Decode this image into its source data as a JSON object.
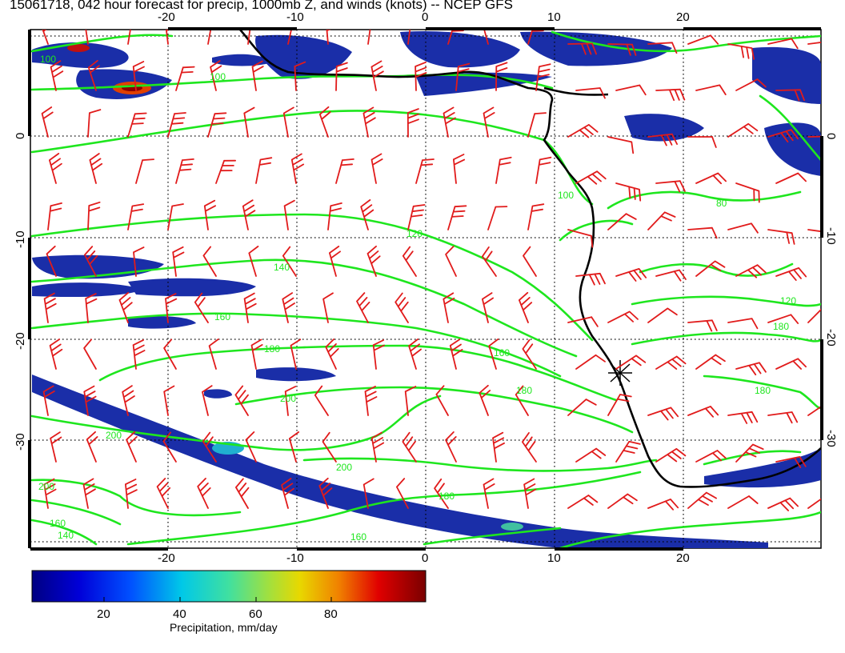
{
  "title": "15061718, 042 hour forecast for precip, 1000mb Z, and winds (knots) -- NCEP GFS",
  "map": {
    "lon_ticks": [
      "-20",
      "-10",
      "0",
      "10",
      "20"
    ],
    "lat_ticks": [
      "0",
      "-10",
      "-20",
      "-30"
    ],
    "contour_levels": [
      "80",
      "100",
      "120",
      "140",
      "160",
      "180",
      "200"
    ],
    "contour_labels": [
      {
        "text": "100"
      },
      {
        "text": "100"
      },
      {
        "text": "120"
      },
      {
        "text": "140"
      },
      {
        "text": "160"
      },
      {
        "text": "180"
      },
      {
        "text": "200"
      },
      {
        "text": "200"
      },
      {
        "text": "200"
      },
      {
        "text": "180"
      },
      {
        "text": "160"
      },
      {
        "text": "180"
      },
      {
        "text": "160"
      },
      {
        "text": "140"
      },
      {
        "text": "100"
      },
      {
        "text": "80"
      },
      {
        "text": "180"
      },
      {
        "text": "160"
      },
      {
        "text": "120"
      },
      {
        "text": "180"
      },
      {
        "text": "200"
      }
    ],
    "colors": {
      "contour": "#1ee61e",
      "barb": "#e11b1b",
      "coast": "#000000",
      "precip_low": "#1a2ea8"
    },
    "marker_icon": "asterisk-marker"
  },
  "colorbar": {
    "ticks": [
      "20",
      "40",
      "60",
      "80"
    ],
    "label": "Precipitation, mm/day"
  }
}
